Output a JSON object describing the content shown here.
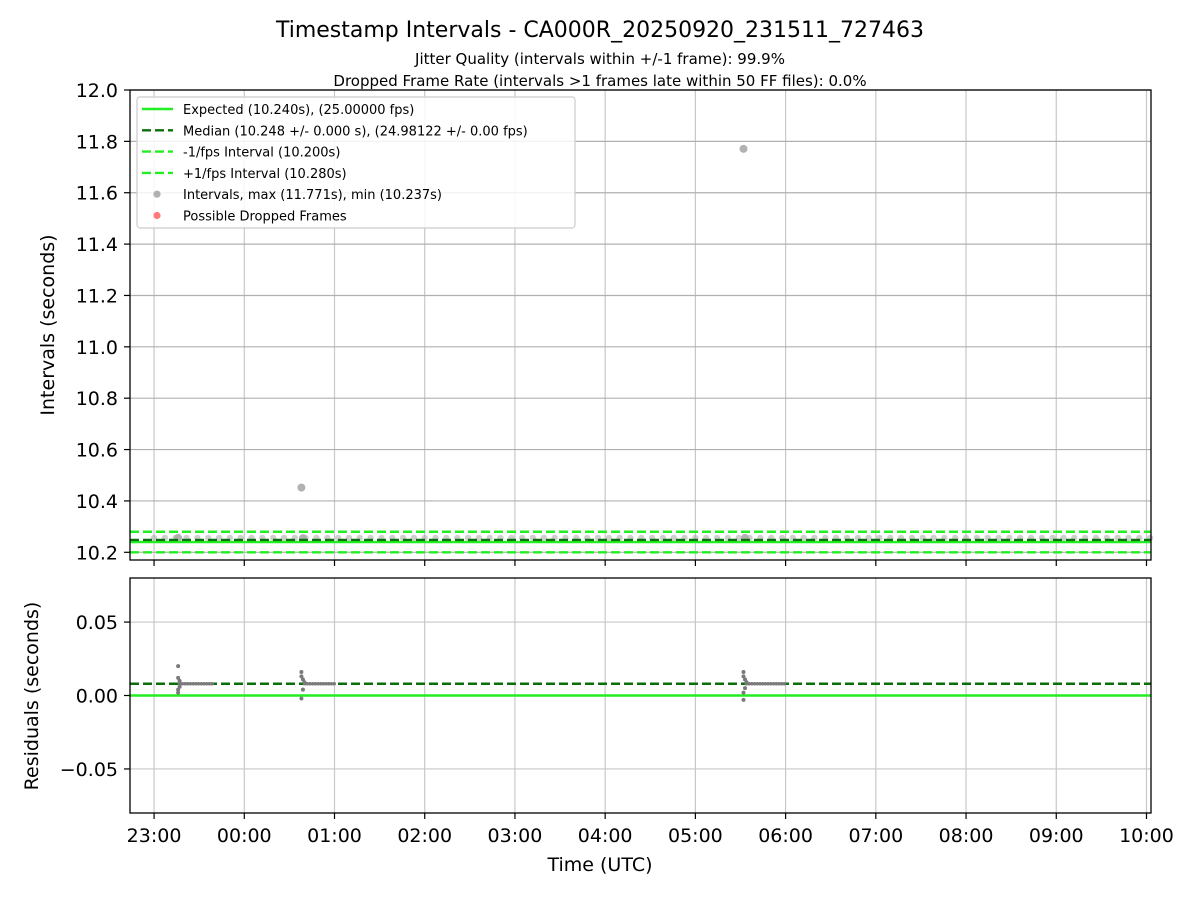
{
  "figure": {
    "title": "Timestamp Intervals - CA000R_20250920_231511_727463",
    "subtitle_1": "Jitter Quality (intervals within +/-1 frame): 99.9%",
    "subtitle_2": "Dropped Frame Rate (intervals >1 frames late within 50 FF files): 0.0%"
  },
  "chart_data": [
    {
      "type": "scatter",
      "panel": "intervals",
      "ylabel": "Intervals (seconds)",
      "ylim": [
        10.17,
        12.0
      ],
      "yticks": [
        "10.2",
        "10.4",
        "10.6",
        "10.8",
        "11.0",
        "11.2",
        "11.4",
        "11.6",
        "11.8",
        "12.0"
      ],
      "grid": true,
      "legend_position": "upper-left",
      "reference_lines": [
        {
          "name": "Expected (10.240s), (25.00000 fps)",
          "value": 10.24,
          "style": "solid",
          "color": "#22ee22"
        },
        {
          "name": "Median (10.248 +/- 0.000 s), (24.98122 +/- 0.00 fps)",
          "value": 10.248,
          "style": "dashed",
          "color": "#0a6e0a"
        },
        {
          "name": "-1/fps Interval (10.200s)",
          "value": 10.2,
          "style": "dashed",
          "color": "#22ee22"
        },
        {
          "name": "+1/fps Interval (10.280s)",
          "value": 10.28,
          "style": "dashed",
          "color": "#22ee22"
        }
      ],
      "series": [
        {
          "name": "Intervals, max (11.771s), min (10.237s)",
          "color": "#a8a8a8",
          "points": [
            {
              "x": "23:16",
              "y": 10.256
            },
            {
              "x": "00:38",
              "y": 10.452
            },
            {
              "x": "00:39",
              "y": 10.255
            },
            {
              "x": "05:32",
              "y": 11.771
            },
            {
              "x": "05:33",
              "y": 10.256
            }
          ]
        },
        {
          "name": "Possible Dropped Frames",
          "color": "#ff6b6b",
          "points": []
        }
      ]
    },
    {
      "type": "scatter",
      "panel": "residuals",
      "xlabel": "Time (UTC)",
      "ylabel": "Residuals (seconds)",
      "ylim": [
        -0.08,
        0.08
      ],
      "yticks": [
        "−0.05",
        "0.00",
        "0.05"
      ],
      "xticks": [
        "23:00",
        "00:00",
        "01:00",
        "02:00",
        "03:00",
        "04:00",
        "05:00",
        "06:00",
        "07:00",
        "08:00",
        "09:00",
        "10:00"
      ],
      "xlim": [
        "22:44",
        "10:03"
      ],
      "grid": true,
      "reference_lines": [
        {
          "value": 0.0,
          "style": "solid",
          "color": "#22ee22"
        },
        {
          "value": 0.008,
          "style": "dashed",
          "color": "#0a6e0a"
        }
      ],
      "series": [
        {
          "color": "#7a7a7a",
          "points": [
            {
              "x": "23:16",
              "y": 0.02
            },
            {
              "x": "23:16",
              "y": 0.012
            },
            {
              "x": "23:16",
              "y": 0.004
            },
            {
              "x": "23:16",
              "y": 0.002
            },
            {
              "x": "23:17",
              "y": 0.01
            },
            {
              "x": "23:17",
              "y": 0.006
            },
            {
              "x": "00:38",
              "y": 0.016
            },
            {
              "x": "00:38",
              "y": 0.013
            },
            {
              "x": "00:38",
              "y": -0.002
            },
            {
              "x": "00:39",
              "y": 0.011
            },
            {
              "x": "00:39",
              "y": 0.004
            },
            {
              "x": "00:40",
              "y": 0.009
            },
            {
              "x": "05:32",
              "y": 0.016
            },
            {
              "x": "05:32",
              "y": 0.013
            },
            {
              "x": "05:32",
              "y": 0.002
            },
            {
              "x": "05:32",
              "y": -0.003
            },
            {
              "x": "05:33",
              "y": 0.011
            },
            {
              "x": "05:33",
              "y": 0.005
            },
            {
              "x": "05:34",
              "y": 0.009
            }
          ],
          "bulk": [
            {
              "from": "23:17",
              "to": "23:40",
              "y": 0.008
            },
            {
              "from": "00:40",
              "to": "01:00",
              "y": 0.008
            },
            {
              "from": "05:34",
              "to": "06:00",
              "y": 0.008
            }
          ]
        }
      ]
    }
  ]
}
